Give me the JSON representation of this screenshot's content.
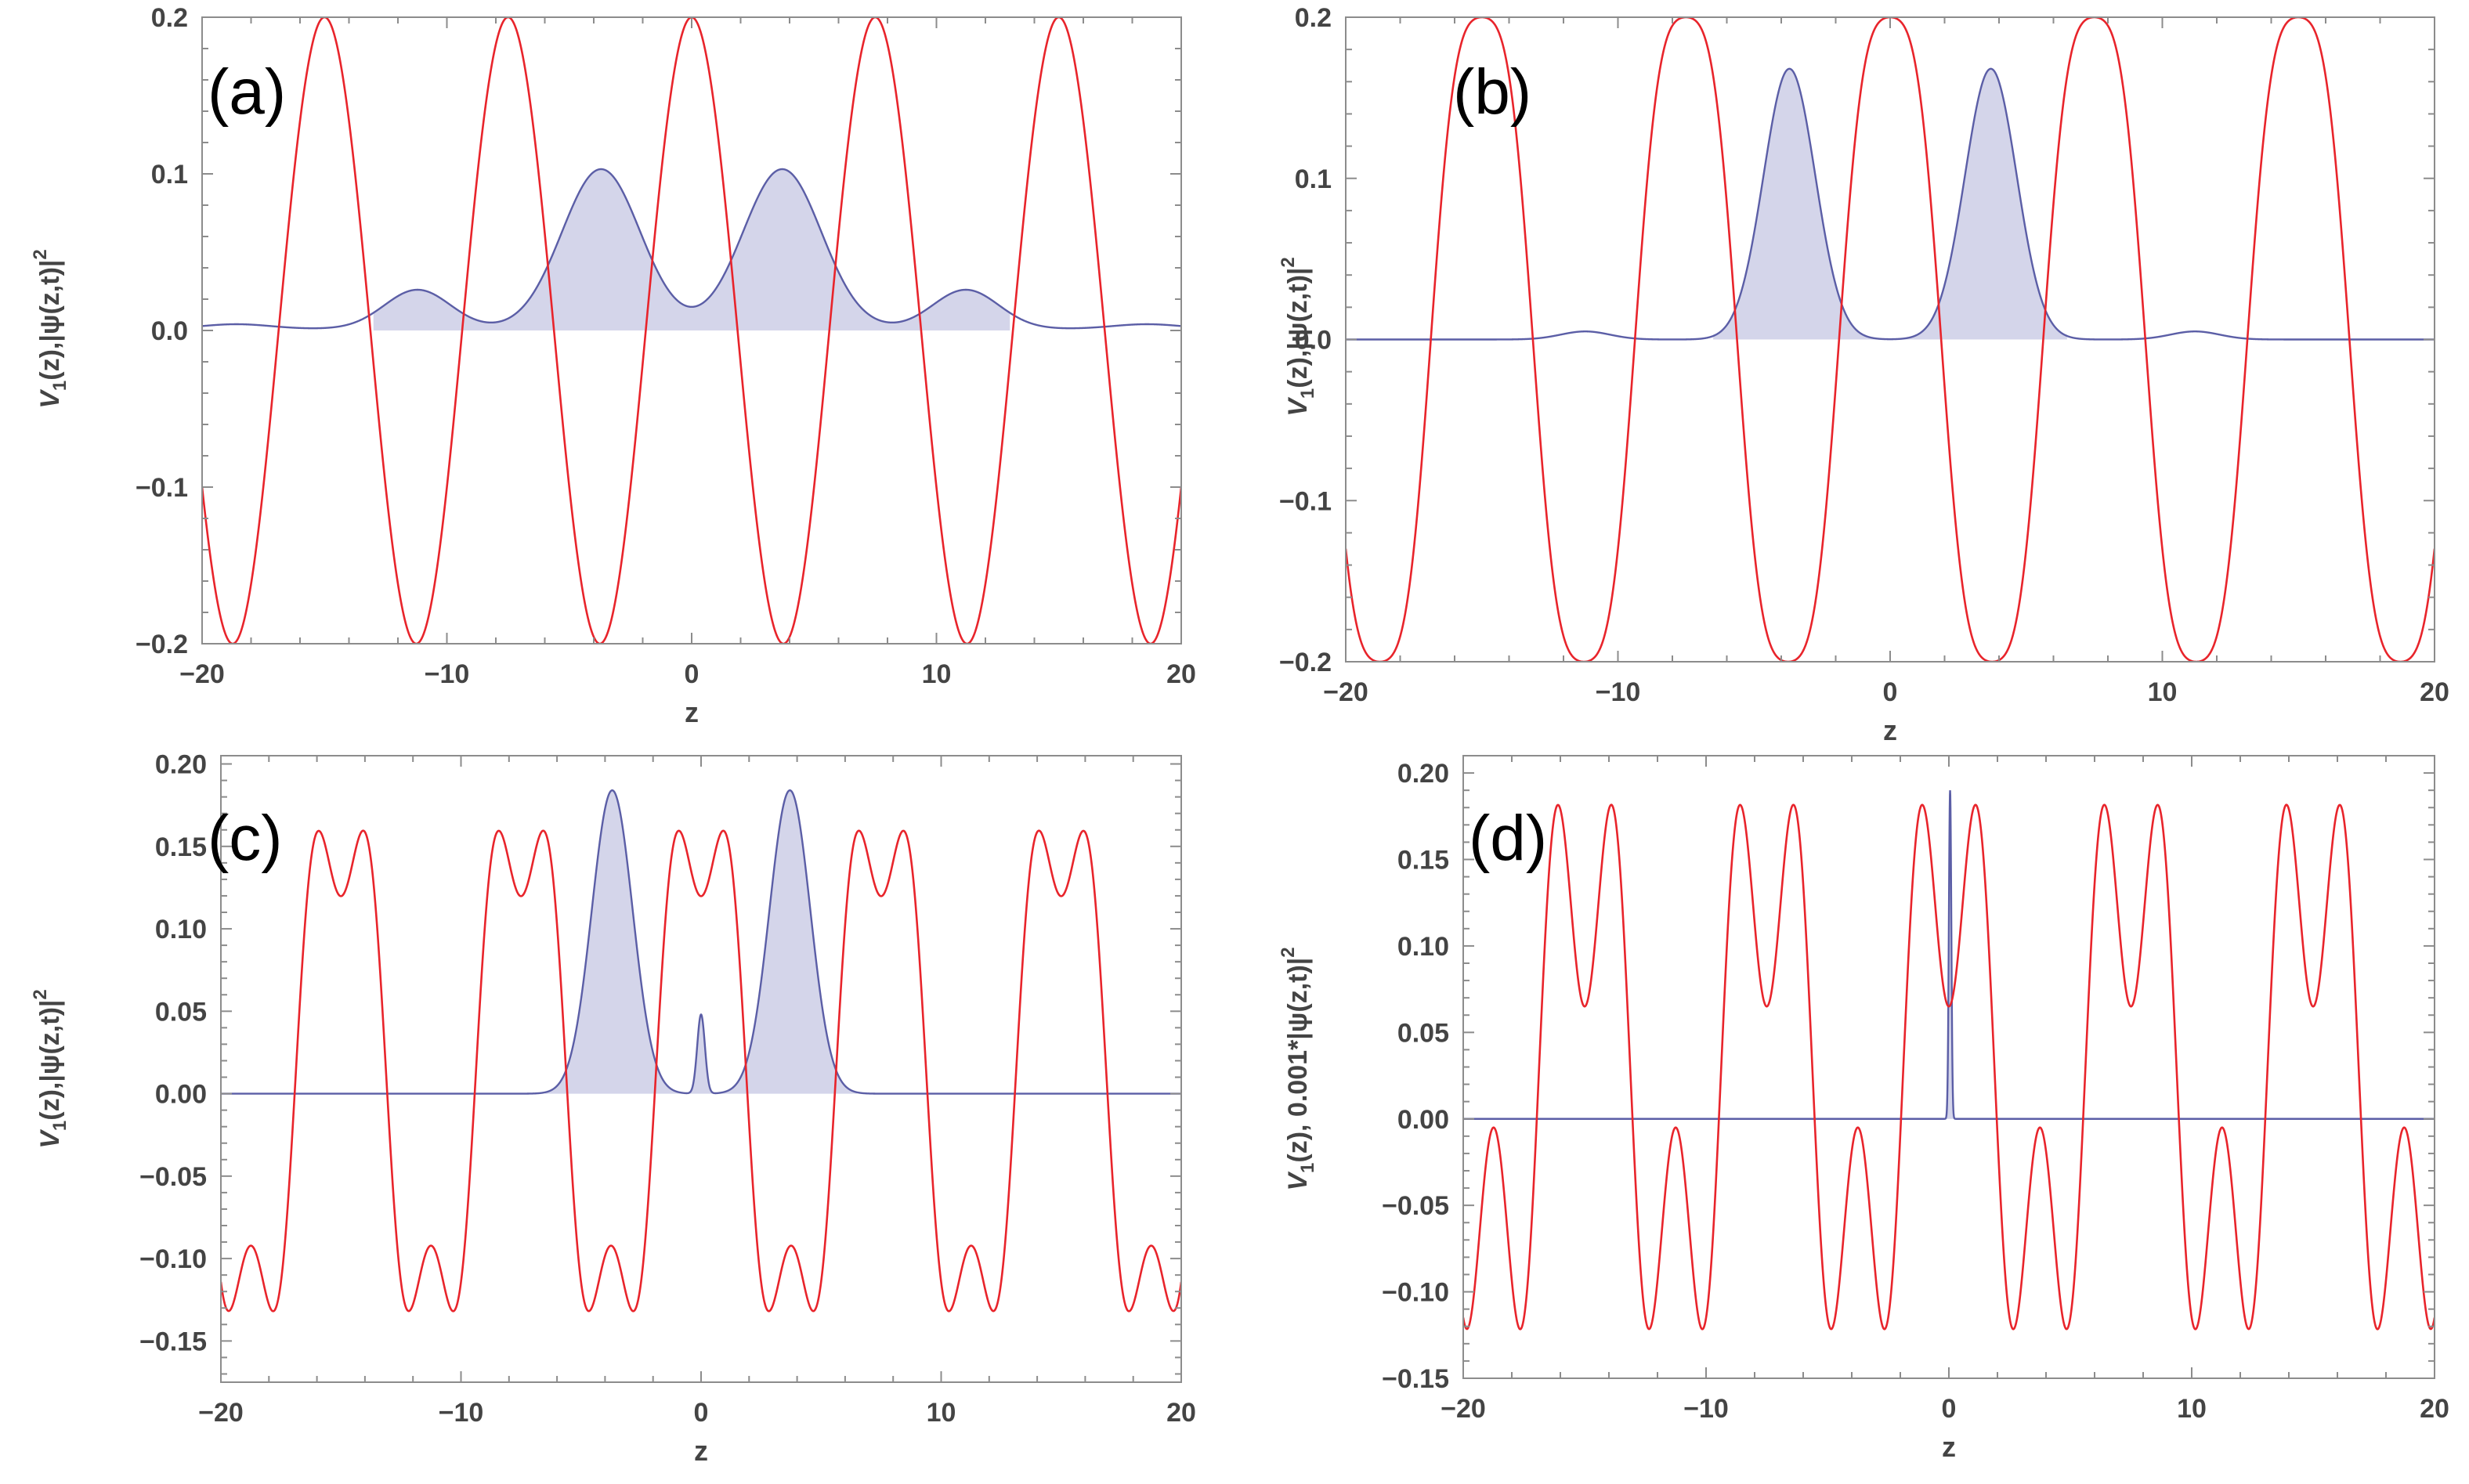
{
  "chart_data": [
    {
      "type": "line",
      "panel_label": "(a)",
      "xlabel": "z",
      "ylabel": "V_1(z),|ψ(z,t)|^2",
      "ylabel_parts": [
        "V",
        "1",
        "(z),|ψ(z,t)|",
        "2"
      ],
      "xlim": [
        -20,
        20
      ],
      "ylim": [
        -0.2,
        0.2
      ],
      "xticks": [
        -20,
        -10,
        0,
        10,
        20
      ],
      "xtick_labels": [
        "−20",
        "−10",
        "0",
        "10",
        "20"
      ],
      "yticks": [
        -0.2,
        -0.1,
        0.0,
        0.1,
        0.2
      ],
      "ytick_labels": [
        "−0.2",
        "−0.1",
        "0.0",
        "0.1",
        "0.2"
      ],
      "series": [
        {
          "name": "V1(z)",
          "color": "#e8242b",
          "potential": {
            "cos_terms": [
              {
                "amp": 0.2,
                "k": 0.8378
              }
            ],
            "const": 0
          }
        },
        {
          "name": "|ψ(z,t)|^2",
          "color": "#5b5ea6",
          "fill": "#d4d5ea",
          "baseline": 0.001,
          "gaussians": [
            {
              "amp": 0.102,
              "mu": -3.7,
              "sigma": 1.6
            },
            {
              "amp": 0.102,
              "mu": 3.7,
              "sigma": 1.6
            },
            {
              "amp": 0.025,
              "mu": -11.2,
              "sigma": 1.35
            },
            {
              "amp": 0.025,
              "mu": 11.2,
              "sigma": 1.35
            },
            {
              "amp": 0.003,
              "mu": -18.6,
              "sigma": 1.4
            },
            {
              "amp": 0.003,
              "mu": 18.6,
              "sigma": 1.4
            }
          ],
          "fill_range": [
            -13,
            13
          ]
        }
      ]
    },
    {
      "type": "line",
      "panel_label": "(b)",
      "xlabel": "z",
      "ylabel": "V_1(z),|ψ(z,t)|^2",
      "ylabel_parts": [
        "V",
        "1",
        "(z),|ψ(z,t)|",
        "2"
      ],
      "xlim": [
        -20,
        20
      ],
      "ylim": [
        -0.2,
        0.2
      ],
      "xticks": [
        -20,
        -10,
        0,
        10,
        20
      ],
      "xtick_labels": [
        "−20",
        "−10",
        "0",
        "10",
        "20"
      ],
      "yticks": [
        -0.2,
        -0.1,
        0.0,
        0.1,
        0.2
      ],
      "ytick_labels": [
        "−0.2",
        "−0.1",
        "0.0",
        "0.1",
        "0.2"
      ],
      "series": [
        {
          "name": "V1(z)",
          "color": "#e8242b",
          "potential": {
            "cos_terms": [
              {
                "amp": 0.22,
                "k": 0.8378
              },
              {
                "amp": -0.02,
                "k": 2.5133
              }
            ],
            "const": 0
          }
        },
        {
          "name": "|ψ(z,t)|^2",
          "color": "#5b5ea6",
          "fill": "#d4d5ea",
          "baseline": 0,
          "gaussians": [
            {
              "amp": 0.168,
              "mu": -3.7,
              "sigma": 0.95
            },
            {
              "amp": 0.168,
              "mu": 3.7,
              "sigma": 0.95
            },
            {
              "amp": 0.005,
              "mu": -11.2,
              "sigma": 0.9
            },
            {
              "amp": 0.005,
              "mu": 11.2,
              "sigma": 0.9
            }
          ],
          "fill_range": [
            -6.5,
            6.5
          ]
        }
      ]
    },
    {
      "type": "line",
      "panel_label": "(c)",
      "xlabel": "z",
      "ylabel": "V_1(z),|ψ(z,t)|^2",
      "ylabel_parts": [
        "V",
        "1",
        "(z),|ψ(z,t)|",
        "2"
      ],
      "xlim": [
        -20,
        20
      ],
      "ylim": [
        -0.175,
        0.205
      ],
      "xticks": [
        -20,
        -10,
        0,
        10,
        20
      ],
      "xtick_labels": [
        "−20",
        "−10",
        "0",
        "10",
        "20"
      ],
      "yticks": [
        -0.15,
        -0.1,
        -0.05,
        0.0,
        0.05,
        0.1,
        0.15,
        0.2
      ],
      "ytick_labels": [
        "−0.15",
        "−0.10",
        "−0.05",
        "0.00",
        "0.05",
        "0.10",
        "0.15",
        "0.20"
      ],
      "series": [
        {
          "name": "V1(z)",
          "color": "#e8242b",
          "potential": {
            "cos_terms": [
              {
                "amp": 0.156,
                "k": 0.8378
              },
              {
                "amp": -0.05,
                "k": 2.5133
              }
            ],
            "const": 0.0138
          }
        },
        {
          "name": "|ψ(z,t)|^2",
          "color": "#5b5ea6",
          "fill": "#d4d5ea",
          "baseline": 0,
          "gaussians": [
            {
              "amp": 0.184,
              "mu": -3.7,
              "sigma": 0.85
            },
            {
              "amp": 0.184,
              "mu": 3.7,
              "sigma": 0.85
            },
            {
              "amp": 0.048,
              "mu": 0,
              "sigma": 0.16
            }
          ],
          "fill_range": [
            -6.5,
            6.5
          ]
        }
      ]
    },
    {
      "type": "line",
      "panel_label": "(d)",
      "xlabel": "z",
      "ylabel": "V_1(z), 0.001*|ψ(z,t)|^2",
      "ylabel_parts": [
        "V",
        "1",
        "(z), 0.001*|ψ(z,t)|",
        "2"
      ],
      "xlim": [
        -20,
        20
      ],
      "ylim": [
        -0.15,
        0.21
      ],
      "xticks": [
        -20,
        -10,
        0,
        10,
        20
      ],
      "xtick_labels": [
        "−20",
        "−10",
        "0",
        "10",
        "20"
      ],
      "yticks": [
        -0.15,
        -0.1,
        -0.05,
        0.0,
        0.05,
        0.1,
        0.15,
        0.2
      ],
      "ytick_labels": [
        "−0.15",
        "−0.10",
        "−0.05",
        "0.00",
        "0.05",
        "0.10",
        "0.15",
        "0.20"
      ],
      "series": [
        {
          "name": "V1(z)",
          "color": "#e8242b",
          "potential": {
            "cos_terms": [
              {
                "amp": 0.12,
                "k": 0.8378
              },
              {
                "amp": -0.085,
                "k": 2.5133
              }
            ],
            "const": 0.03
          }
        },
        {
          "name": "0.001*|ψ(z,t)|^2",
          "color": "#5b5ea6",
          "fill": "#d4d5ea",
          "baseline": 0,
          "gaussians": [
            {
              "amp": 0.19,
              "mu": 0.05,
              "sigma": 0.05
            }
          ],
          "fill_range": [
            -0.5,
            0.5
          ]
        }
      ]
    }
  ]
}
